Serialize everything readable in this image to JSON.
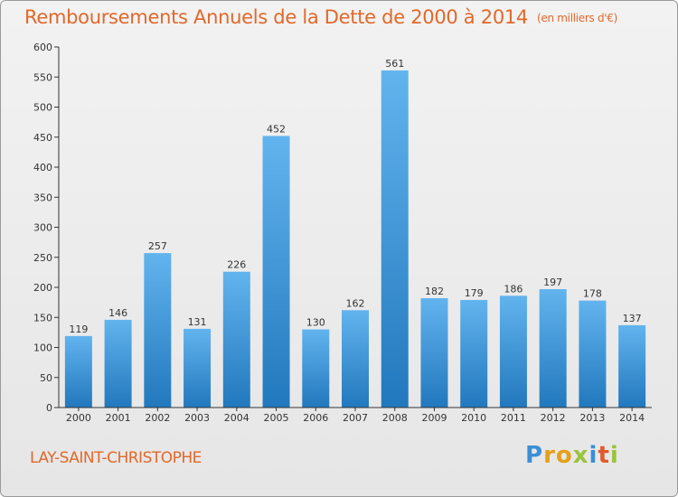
{
  "header": {
    "title": "Remboursements Annuels de la Dette de 2000 à 2014",
    "unit": "(en milliers d'€)"
  },
  "footer": {
    "commune": "LAY-SAINT-CHRISTOPHE",
    "logo": "Proxiti"
  },
  "colors": {
    "title": "#e2682a",
    "bar_light": "#62b4ee",
    "bar_dark": "#2278bd",
    "axis": "#333333"
  },
  "chart_data": {
    "type": "bar",
    "categories": [
      "2000",
      "2001",
      "2002",
      "2003",
      "2004",
      "2005",
      "2006",
      "2007",
      "2008",
      "2009",
      "2010",
      "2011",
      "2012",
      "2013",
      "2014"
    ],
    "values": [
      119,
      146,
      257,
      131,
      226,
      452,
      130,
      162,
      561,
      182,
      179,
      186,
      197,
      178,
      137
    ],
    "yticks": [
      0,
      50,
      100,
      150,
      200,
      250,
      300,
      350,
      400,
      450,
      500,
      550,
      600
    ],
    "ylim": [
      0,
      600
    ],
    "grid": false,
    "legend": "none",
    "data_labels": true
  }
}
